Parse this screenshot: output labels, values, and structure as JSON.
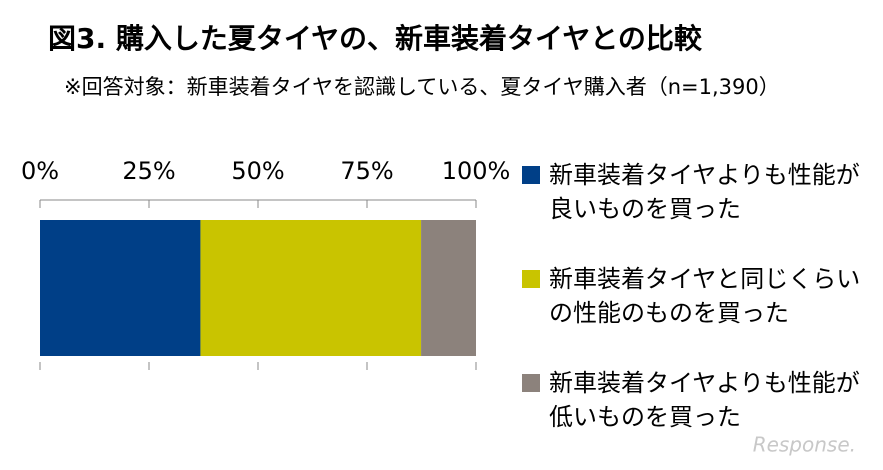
{
  "chart_data": {
    "type": "stacked-bar-100",
    "title": "図3. 購入した夏タイヤの、新車装着タイヤとの比較",
    "subtitle": "※回答対象：新車装着タイヤを認識している、夏タイヤ購入者（n=1,390）",
    "series": [
      {
        "name": "新車装着タイヤよりも性能が良いものを買った",
        "color": "#003f87",
        "values": [
          36.8
        ]
      },
      {
        "name": "新車装着タイヤと同じくらいの性能のものを買った",
        "color": "#c9c400",
        "values": [
          50.6
        ]
      },
      {
        "name": "新車装着タイヤよりも性能が低いものを買った",
        "color": "#8c827c",
        "values": [
          12.6
        ]
      }
    ],
    "xlim": [
      0,
      100
    ],
    "xticks": [
      {
        "value": 0,
        "label": "0%"
      },
      {
        "value": 25,
        "label": "25%"
      },
      {
        "value": 50,
        "label": "50%"
      },
      {
        "value": 75,
        "label": "75%"
      },
      {
        "value": 100,
        "label": "100%"
      }
    ],
    "watermark": "Response."
  }
}
